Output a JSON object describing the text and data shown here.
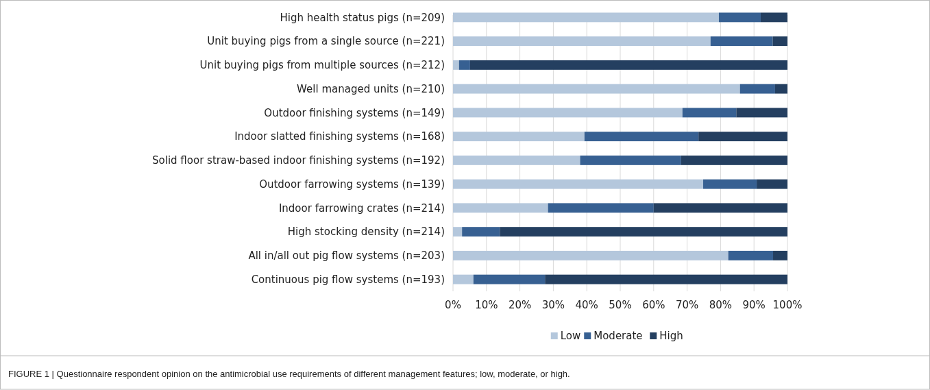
{
  "chart_data": {
    "type": "bar",
    "orientation": "horizontal",
    "stacked": true,
    "categories": [
      "High health status pigs (n=209)",
      "Unit buying pigs from a single source (n=221)",
      "Unit buying pigs from multiple sources (n=212)",
      "Well managed units (n=210)",
      "Outdoor finishing systems (n=149)",
      "Indoor slatted finishing systems (n=168)",
      "Solid floor straw-based indoor finishing systems (n=192)",
      "Outdoor farrowing systems (n=139)",
      "Indoor farrowing crates (n=214)",
      "High stocking density (n=214)",
      "All in/all out pig flow systems (n=203)",
      "Continuous  pig flow systems (n=193)"
    ],
    "series": [
      {
        "name": "Low",
        "color": "#b4c7dc",
        "values": [
          79.5,
          77.0,
          1.8,
          85.8,
          68.6,
          39.3,
          38.0,
          74.8,
          28.4,
          2.7,
          82.3,
          6.1
        ]
      },
      {
        "name": "Moderate",
        "color": "#376092",
        "values": [
          12.5,
          18.6,
          3.3,
          10.5,
          16.1,
          34.1,
          30.2,
          16.0,
          31.6,
          11.3,
          13.4,
          21.4
        ]
      },
      {
        "name": "High",
        "color": "#243f60",
        "values": [
          8.0,
          4.4,
          94.9,
          3.7,
          15.3,
          26.6,
          31.8,
          9.2,
          40.0,
          86.0,
          4.3,
          72.5
        ]
      }
    ],
    "xlim": [
      0,
      100
    ],
    "xticks": [
      {
        "value": 0,
        "label": "0%"
      },
      {
        "value": 10,
        "label": "10%"
      },
      {
        "value": 20,
        "label": "20%"
      },
      {
        "value": 30,
        "label": "30%"
      },
      {
        "value": 40,
        "label": "40%"
      },
      {
        "value": 50,
        "label": "50%"
      },
      {
        "value": 60,
        "label": "60%"
      },
      {
        "value": 70,
        "label": "70%"
      },
      {
        "value": 80,
        "label": "80%"
      },
      {
        "value": 90,
        "label": "90%"
      },
      {
        "value": 100,
        "label": "100%"
      }
    ],
    "grid": "x",
    "legend": "bottom",
    "annotations": [
      "FIGURE 1 | Questionnaire respondent opinion on the antimicrobial use requirements of different management features; low, moderate, or high."
    ]
  }
}
